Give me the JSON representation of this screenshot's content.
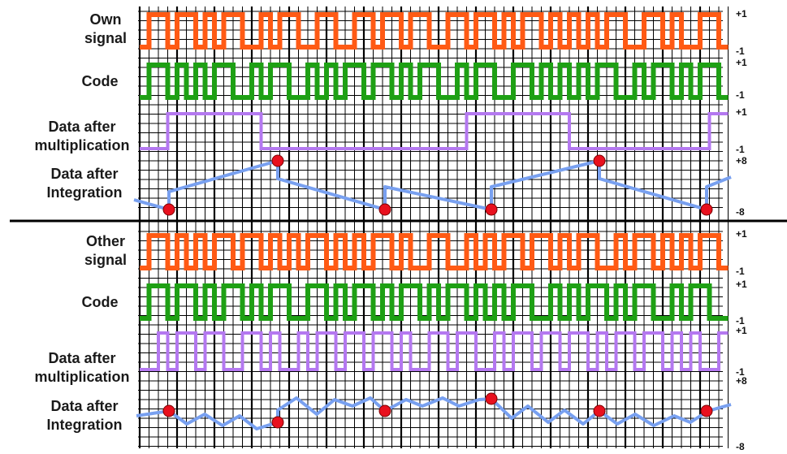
{
  "sections": [
    {
      "id": "own",
      "tracks": [
        {
          "label_lines": [
            "Own",
            "signal"
          ],
          "type": "signal",
          "color": "#ff5a14",
          "top_label": "+1",
          "bottom_label": "-1"
        },
        {
          "label_lines": [
            "Code"
          ],
          "type": "signal",
          "color": "#1ea014",
          "top_label": "+1",
          "bottom_label": "-1"
        },
        {
          "label_lines": [
            "Data after",
            "multiplication"
          ],
          "type": "signal",
          "color": "#b478f0",
          "top_label": "+1",
          "bottom_label": "-1"
        },
        {
          "label_lines": [
            "Data after",
            "Integration"
          ],
          "type": "integration",
          "color": "#78a0f0",
          "top_label": "+8",
          "bottom_label": "-8"
        }
      ]
    },
    {
      "id": "other",
      "tracks": [
        {
          "label_lines": [
            "Other",
            "signal"
          ],
          "type": "signal",
          "color": "#ff5a14",
          "top_label": "+1",
          "bottom_label": "-1"
        },
        {
          "label_lines": [
            "Code"
          ],
          "type": "signal",
          "color": "#1ea014",
          "top_label": "+1",
          "bottom_label": "-1"
        },
        {
          "label_lines": [
            "Data after",
            "multiplication"
          ],
          "type": "signal",
          "color": "#b478f0",
          "top_label": "+1",
          "bottom_label": "-1"
        },
        {
          "label_lines": [
            "Data after",
            "Integration"
          ],
          "type": "integration",
          "color": "#78a0f0",
          "top_label": "+8",
          "bottom_label": "-8"
        }
      ]
    }
  ],
  "colors": {
    "grid": "#000000",
    "separator": "#000000",
    "sample_marker": "#e8101e",
    "label_text": "#1a1a1a"
  }
}
